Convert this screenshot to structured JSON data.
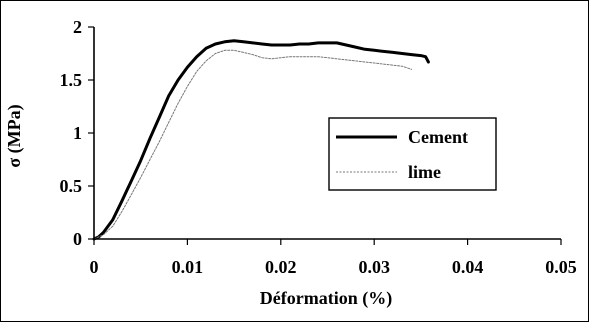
{
  "chart_data": {
    "type": "line",
    "title": "",
    "xlabel": "Déformation (%)",
    "ylabel": "σ (MPa)",
    "xlim": [
      0,
      0.05
    ],
    "ylim": [
      0,
      2
    ],
    "x_ticks": [
      "0",
      "0.01",
      "0.02",
      "0.03",
      "0.04",
      "0.05"
    ],
    "y_ticks": [
      "0",
      "0.5",
      "1",
      "1.5",
      "2"
    ],
    "grid": false,
    "legend_position": "right",
    "series": [
      {
        "name": "Cement",
        "color": "#000000",
        "style": "solid-thick",
        "x": [
          0,
          0.0005,
          0.001,
          0.002,
          0.003,
          0.004,
          0.005,
          0.006,
          0.007,
          0.008,
          0.009,
          0.01,
          0.011,
          0.012,
          0.013,
          0.014,
          0.015,
          0.016,
          0.017,
          0.018,
          0.019,
          0.02,
          0.021,
          0.022,
          0.023,
          0.024,
          0.025,
          0.026,
          0.027,
          0.028,
          0.029,
          0.03,
          0.031,
          0.032,
          0.033,
          0.034,
          0.035,
          0.0355,
          0.0358
        ],
        "y": [
          0,
          0.02,
          0.06,
          0.18,
          0.36,
          0.55,
          0.74,
          0.95,
          1.15,
          1.35,
          1.5,
          1.62,
          1.72,
          1.8,
          1.84,
          1.86,
          1.87,
          1.86,
          1.85,
          1.84,
          1.83,
          1.83,
          1.83,
          1.84,
          1.84,
          1.85,
          1.85,
          1.85,
          1.83,
          1.81,
          1.79,
          1.78,
          1.77,
          1.76,
          1.75,
          1.74,
          1.73,
          1.72,
          1.67
        ]
      },
      {
        "name": "lime",
        "color": "#777777",
        "style": "dotted-thin",
        "x": [
          0,
          0.001,
          0.002,
          0.003,
          0.004,
          0.005,
          0.006,
          0.007,
          0.008,
          0.009,
          0.01,
          0.011,
          0.012,
          0.013,
          0.014,
          0.015,
          0.016,
          0.017,
          0.018,
          0.019,
          0.02,
          0.021,
          0.022,
          0.023,
          0.024,
          0.025,
          0.026,
          0.027,
          0.028,
          0.029,
          0.03,
          0.031,
          0.032,
          0.033,
          0.034
        ],
        "y": [
          0,
          0.04,
          0.12,
          0.26,
          0.42,
          0.58,
          0.75,
          0.92,
          1.1,
          1.28,
          1.44,
          1.58,
          1.68,
          1.75,
          1.78,
          1.78,
          1.76,
          1.74,
          1.71,
          1.7,
          1.71,
          1.72,
          1.72,
          1.72,
          1.72,
          1.71,
          1.7,
          1.69,
          1.68,
          1.67,
          1.66,
          1.65,
          1.64,
          1.63,
          1.6
        ]
      }
    ]
  }
}
